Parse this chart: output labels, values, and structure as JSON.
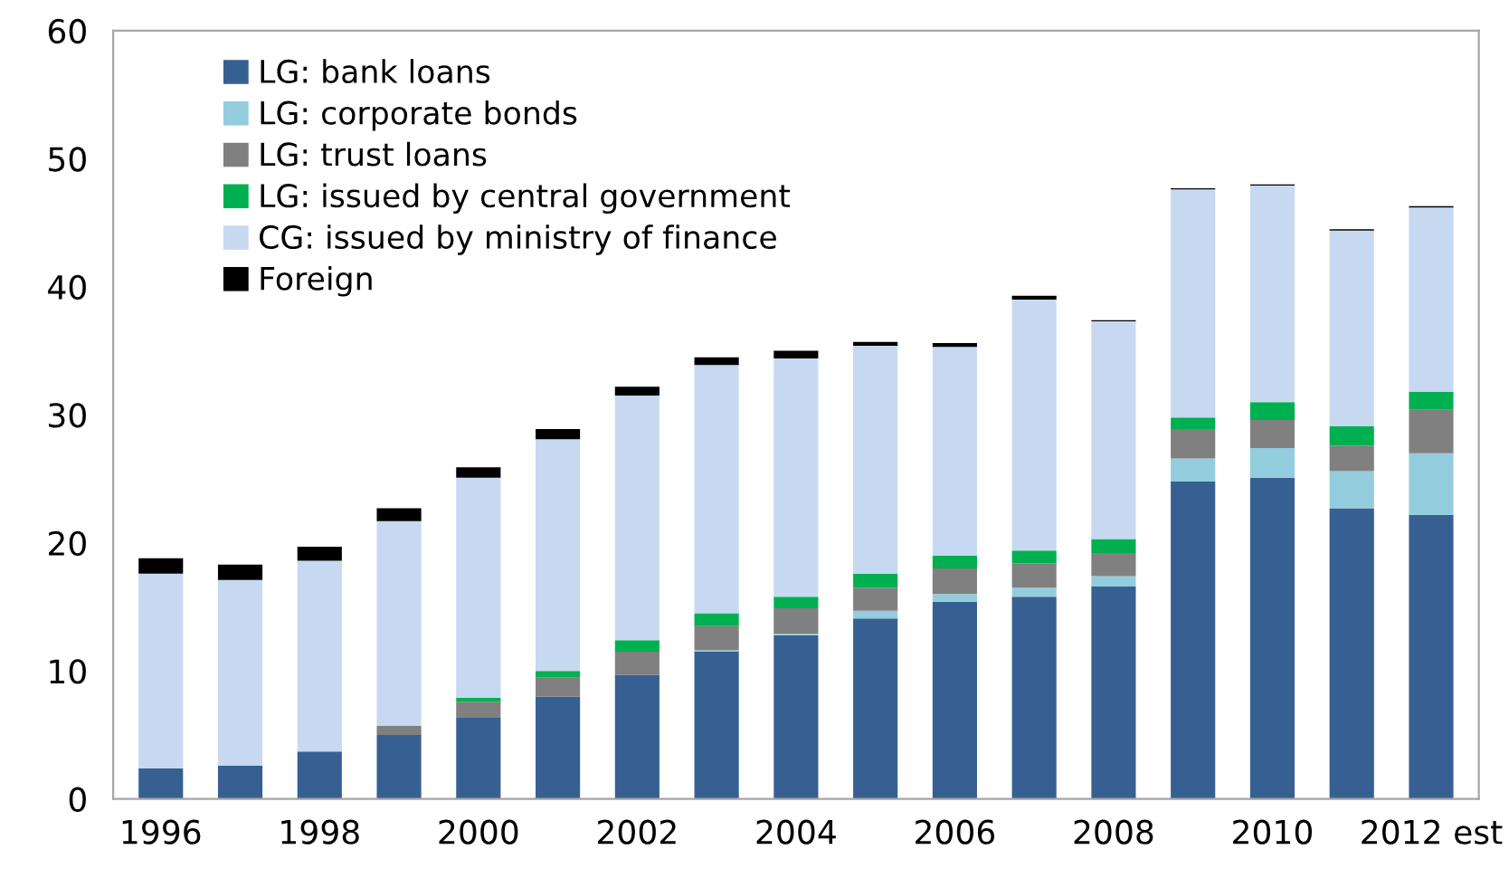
{
  "chart_data": {
    "type": "bar",
    "stacked": true,
    "categories": [
      "1996",
      null,
      "1998",
      null,
      "2000",
      null,
      "2002",
      null,
      "2004",
      null,
      "2006",
      null,
      "2008",
      null,
      "2010",
      null,
      "2012 est"
    ],
    "series": [
      {
        "name": "LG: bank loans",
        "color": "#376092",
        "values": [
          2.4,
          2.6,
          3.7,
          5.0,
          6.4,
          8.0,
          9.7,
          11.5,
          12.8,
          14.1,
          15.4,
          15.8,
          16.6,
          24.8,
          25.1,
          22.7,
          22.2
        ]
      },
      {
        "name": "LG: corporate bonds",
        "color": "#93cddd",
        "values": [
          0,
          0,
          0,
          0,
          0,
          0,
          0,
          0.1,
          0.1,
          0.6,
          0.6,
          0.7,
          0.8,
          1.8,
          2.3,
          2.9,
          4.8
        ]
      },
      {
        "name": "LG: trust loans",
        "color": "#808080",
        "values": [
          0,
          0,
          0,
          0.7,
          1.2,
          1.5,
          1.8,
          1.9,
          2.0,
          1.8,
          2.0,
          1.9,
          1.8,
          2.3,
          2.2,
          2.0,
          3.4
        ]
      },
      {
        "name": "LG: issued by central government",
        "color": "#00b050",
        "values": [
          0,
          0,
          0,
          0,
          0.3,
          0.5,
          0.9,
          1.0,
          0.9,
          1.1,
          1.0,
          1.0,
          1.1,
          0.9,
          1.4,
          1.5,
          1.4
        ]
      },
      {
        "name": "CG: issued by ministry of finance",
        "color": "#c6d9f1",
        "values": [
          15.2,
          14.5,
          14.9,
          16.0,
          17.2,
          18.1,
          19.1,
          19.4,
          18.6,
          17.8,
          16.3,
          19.6,
          17.0,
          17.8,
          16.9,
          15.3,
          14.4
        ]
      },
      {
        "name": "Foreign",
        "color": "#000000",
        "values": [
          1.2,
          1.2,
          1.1,
          1.0,
          0.8,
          0.8,
          0.7,
          0.6,
          0.6,
          0.3,
          0.3,
          0.3,
          0.1,
          0.1,
          0.1,
          0.1,
          0.1
        ]
      }
    ],
    "ylim": [
      0,
      60
    ],
    "yticks": [
      0,
      10,
      20,
      30,
      40,
      50,
      60
    ],
    "grid": false,
    "legend": "top left"
  }
}
